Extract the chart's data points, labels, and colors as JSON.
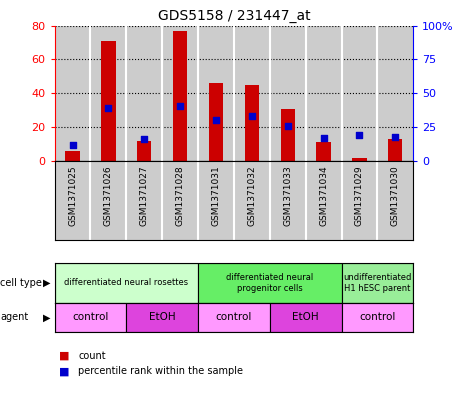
{
  "title": "GDS5158 / 231447_at",
  "samples": [
    "GSM1371025",
    "GSM1371026",
    "GSM1371027",
    "GSM1371028",
    "GSM1371031",
    "GSM1371032",
    "GSM1371033",
    "GSM1371034",
    "GSM1371029",
    "GSM1371030"
  ],
  "counts": [
    6,
    71,
    12,
    77,
    46,
    45,
    31,
    11,
    2,
    13
  ],
  "percentiles": [
    12,
    39,
    16,
    41,
    30,
    33,
    26,
    17,
    19,
    18
  ],
  "ylim_left": [
    0,
    80
  ],
  "ylim_right": [
    0,
    100
  ],
  "yticks_left": [
    0,
    20,
    40,
    60,
    80
  ],
  "yticks_right": [
    0,
    25,
    50,
    75,
    100
  ],
  "ytick_labels_left": [
    "0",
    "20",
    "40",
    "60",
    "80"
  ],
  "ytick_labels_right": [
    "0",
    "25",
    "50",
    "75",
    "100%"
  ],
  "cell_type_groups": [
    {
      "label": "differentiated neural rosettes",
      "start": 0,
      "end": 4,
      "color": "#ccffcc"
    },
    {
      "label": "differentiated neural\nprogenitor cells",
      "start": 4,
      "end": 8,
      "color": "#66ee66"
    },
    {
      "label": "undifferentiated\nH1 hESC parent",
      "start": 8,
      "end": 10,
      "color": "#99ee99"
    }
  ],
  "agent_groups": [
    {
      "label": "control",
      "start": 0,
      "end": 2,
      "color": "#ff99ff"
    },
    {
      "label": "EtOH",
      "start": 2,
      "end": 4,
      "color": "#dd44dd"
    },
    {
      "label": "control",
      "start": 4,
      "end": 6,
      "color": "#ff99ff"
    },
    {
      "label": "EtOH",
      "start": 6,
      "end": 8,
      "color": "#dd44dd"
    },
    {
      "label": "control",
      "start": 8,
      "end": 10,
      "color": "#ff99ff"
    }
  ],
  "bar_color": "#cc0000",
  "percentile_color": "#0000cc",
  "sample_bg_color": "#cccccc",
  "bg_color": "#ffffff",
  "legend_count_color": "#cc0000",
  "legend_pct_color": "#0000cc",
  "bar_width": 0.4
}
